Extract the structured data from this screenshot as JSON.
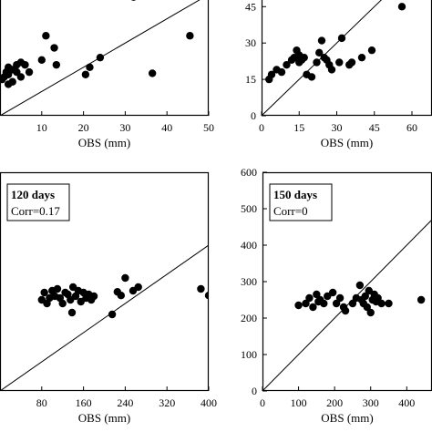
{
  "chart_data": [
    {
      "type": "scatter",
      "title": "",
      "corr": "",
      "xlabel": "OBS (mm)",
      "xticks": [
        "10",
        "20",
        "30",
        "40",
        "50"
      ],
      "xtick_values": [
        10,
        20,
        30,
        40,
        50
      ],
      "yticks": [],
      "ytick_values": [],
      "xlim": [
        0,
        50
      ],
      "ylim": [
        0,
        50
      ],
      "identity_line": true,
      "points": [
        {
          "x": 0.5,
          "y": 15
        },
        {
          "x": 1,
          "y": 16
        },
        {
          "x": 1.5,
          "y": 18
        },
        {
          "x": 2,
          "y": 20
        },
        {
          "x": 3,
          "y": 19
        },
        {
          "x": 4,
          "y": 21
        },
        {
          "x": 5,
          "y": 22
        },
        {
          "x": 6,
          "y": 21
        },
        {
          "x": 7,
          "y": 18
        },
        {
          "x": 5,
          "y": 16
        },
        {
          "x": 2,
          "y": 17
        },
        {
          "x": 3,
          "y": 14
        },
        {
          "x": 4,
          "y": 18
        },
        {
          "x": 10,
          "y": 23
        },
        {
          "x": 11,
          "y": 33
        },
        {
          "x": 13,
          "y": 28
        },
        {
          "x": 13.5,
          "y": 21
        },
        {
          "x": 20.5,
          "y": 17
        },
        {
          "x": 21.5,
          "y": 20
        },
        {
          "x": 24,
          "y": 24
        },
        {
          "x": 32,
          "y": 49
        },
        {
          "x": 36.5,
          "y": 17.5
        },
        {
          "x": 45.5,
          "y": 33
        },
        {
          "x": 2,
          "y": 13
        }
      ]
    },
    {
      "type": "scatter",
      "title": "",
      "corr": "",
      "xlabel": "OBS (mm)",
      "xticks": [
        "0",
        "15",
        "30",
        "45",
        "60"
      ],
      "xtick_values": [
        0,
        15,
        30,
        45,
        60
      ],
      "yticks": [
        "0",
        "15",
        "30",
        "45"
      ],
      "ytick_values": [
        0,
        15,
        30,
        45
      ],
      "xlim": [
        0,
        68
      ],
      "ylim": [
        0,
        50
      ],
      "identity_line": true,
      "points": [
        {
          "x": 3,
          "y": 15
        },
        {
          "x": 4,
          "y": 17
        },
        {
          "x": 6,
          "y": 19
        },
        {
          "x": 8,
          "y": 18
        },
        {
          "x": 10,
          "y": 21
        },
        {
          "x": 12,
          "y": 23
        },
        {
          "x": 13,
          "y": 24
        },
        {
          "x": 14,
          "y": 27
        },
        {
          "x": 15,
          "y": 25
        },
        {
          "x": 15,
          "y": 22
        },
        {
          "x": 16,
          "y": 23
        },
        {
          "x": 17,
          "y": 24
        },
        {
          "x": 18,
          "y": 17
        },
        {
          "x": 20,
          "y": 16
        },
        {
          "x": 22,
          "y": 22
        },
        {
          "x": 23,
          "y": 26
        },
        {
          "x": 24,
          "y": 31
        },
        {
          "x": 25,
          "y": 24
        },
        {
          "x": 26,
          "y": 23
        },
        {
          "x": 27,
          "y": 21
        },
        {
          "x": 28,
          "y": 19
        },
        {
          "x": 31,
          "y": 22
        },
        {
          "x": 32,
          "y": 32
        },
        {
          "x": 35,
          "y": 21
        },
        {
          "x": 36,
          "y": 22
        },
        {
          "x": 40,
          "y": 24
        },
        {
          "x": 44,
          "y": 27
        },
        {
          "x": 56,
          "y": 45
        }
      ]
    },
    {
      "type": "scatter",
      "title": "120 days",
      "corr": "Corr=0.17",
      "xlabel": "OBS (mm)",
      "xticks": [
        "80",
        "160",
        "240",
        "320",
        "400"
      ],
      "xtick_values": [
        80,
        160,
        240,
        320,
        400
      ],
      "yticks": [],
      "ytick_values": [],
      "xlim": [
        0,
        400
      ],
      "ylim": [
        0,
        600
      ],
      "identity_line": true,
      "points": [
        {
          "x": 80,
          "y": 250
        },
        {
          "x": 85,
          "y": 270
        },
        {
          "x": 90,
          "y": 240
        },
        {
          "x": 95,
          "y": 255
        },
        {
          "x": 100,
          "y": 275
        },
        {
          "x": 105,
          "y": 260
        },
        {
          "x": 110,
          "y": 280
        },
        {
          "x": 115,
          "y": 255
        },
        {
          "x": 120,
          "y": 240
        },
        {
          "x": 125,
          "y": 270
        },
        {
          "x": 130,
          "y": 265
        },
        {
          "x": 135,
          "y": 250
        },
        {
          "x": 140,
          "y": 285
        },
        {
          "x": 145,
          "y": 260
        },
        {
          "x": 150,
          "y": 275
        },
        {
          "x": 155,
          "y": 245
        },
        {
          "x": 160,
          "y": 270
        },
        {
          "x": 165,
          "y": 255
        },
        {
          "x": 170,
          "y": 265
        },
        {
          "x": 175,
          "y": 250
        },
        {
          "x": 180,
          "y": 260
        },
        {
          "x": 138,
          "y": 215
        },
        {
          "x": 215,
          "y": 210
        },
        {
          "x": 225,
          "y": 272
        },
        {
          "x": 232,
          "y": 262
        },
        {
          "x": 240,
          "y": 310
        },
        {
          "x": 255,
          "y": 275
        },
        {
          "x": 265,
          "y": 285
        },
        {
          "x": 385,
          "y": 280
        },
        {
          "x": 400,
          "y": 262
        }
      ]
    },
    {
      "type": "scatter",
      "title": "150 days",
      "corr": "Corr=0",
      "xlabel": "OBS (mm)",
      "xticks": [
        "0",
        "100",
        "200",
        "300",
        "400"
      ],
      "xtick_values": [
        0,
        100,
        200,
        300,
        400
      ],
      "yticks": [
        "0",
        "100",
        "200",
        "300",
        "400",
        "500",
        "600"
      ],
      "ytick_values": [
        0,
        100,
        200,
        300,
        400,
        500,
        600
      ],
      "xlim": [
        0,
        470
      ],
      "ylim": [
        0,
        600
      ],
      "identity_line": true,
      "points": [
        {
          "x": 100,
          "y": 235
        },
        {
          "x": 120,
          "y": 240
        },
        {
          "x": 130,
          "y": 255
        },
        {
          "x": 140,
          "y": 230
        },
        {
          "x": 150,
          "y": 265
        },
        {
          "x": 155,
          "y": 245
        },
        {
          "x": 160,
          "y": 250
        },
        {
          "x": 170,
          "y": 240
        },
        {
          "x": 180,
          "y": 260
        },
        {
          "x": 195,
          "y": 270
        },
        {
          "x": 205,
          "y": 240
        },
        {
          "x": 215,
          "y": 255
        },
        {
          "x": 225,
          "y": 230
        },
        {
          "x": 230,
          "y": 220
        },
        {
          "x": 250,
          "y": 240
        },
        {
          "x": 260,
          "y": 255
        },
        {
          "x": 270,
          "y": 290
        },
        {
          "x": 275,
          "y": 250
        },
        {
          "x": 280,
          "y": 240
        },
        {
          "x": 285,
          "y": 260
        },
        {
          "x": 290,
          "y": 230
        },
        {
          "x": 295,
          "y": 275
        },
        {
          "x": 300,
          "y": 215
        },
        {
          "x": 305,
          "y": 250
        },
        {
          "x": 310,
          "y": 265
        },
        {
          "x": 315,
          "y": 245
        },
        {
          "x": 320,
          "y": 255
        },
        {
          "x": 330,
          "y": 240
        },
        {
          "x": 350,
          "y": 240
        },
        {
          "x": 440,
          "y": 250
        }
      ]
    }
  ]
}
